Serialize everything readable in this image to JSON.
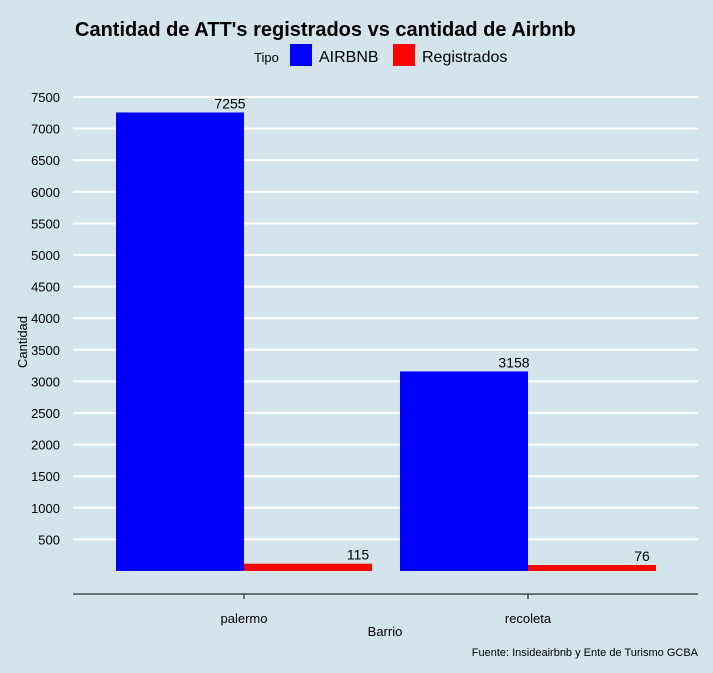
{
  "chart_data": {
    "type": "bar",
    "title": "Cantidad de ATT's registrados vs cantidad de Airbnb",
    "xlabel": "Barrio",
    "ylabel": "Cantidad",
    "categories": [
      "palermo",
      "recoleta"
    ],
    "series": [
      {
        "name": "AIRBNB",
        "color": "#0000ff",
        "values": [
          7255,
          3158
        ]
      },
      {
        "name": "Registrados",
        "color": "#ff0000",
        "values": [
          115,
          76
        ]
      }
    ],
    "yticks": [
      500,
      1000,
      1500,
      2000,
      2500,
      3000,
      3500,
      4000,
      4500,
      5000,
      5500,
      6000,
      6500,
      7000,
      7500
    ],
    "ylim": [
      0,
      7500
    ],
    "legend": {
      "title": "Tipo",
      "position": "top"
    },
    "grid": true,
    "caption": "Fuente: Insideairbnb y Ente de Turismo GCBA"
  },
  "colors": {
    "background": "#d5e3ea",
    "grid": "#ffffff"
  }
}
